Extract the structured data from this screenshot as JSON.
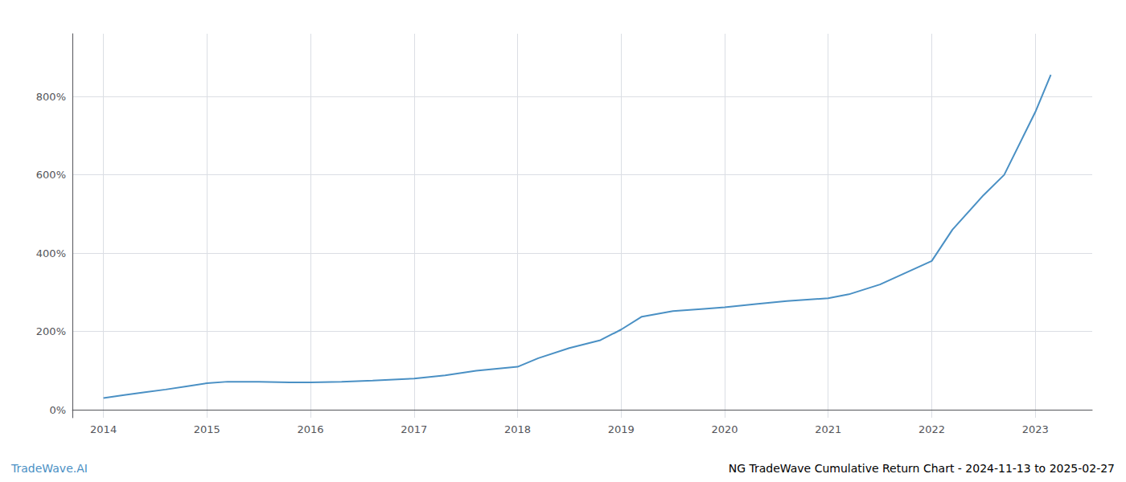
{
  "chart_data": {
    "type": "line",
    "annotations": [
      "TradeWave.AI",
      "NG TradeWave Cumulative Return Chart - 2024-11-13 to 2025-02-27"
    ],
    "x": [
      2014.0,
      2014.2,
      2014.4,
      2014.6,
      2014.8,
      2015.0,
      2015.2,
      2015.5,
      2015.8,
      2016.0,
      2016.3,
      2016.6,
      2017.0,
      2017.3,
      2017.6,
      2018.0,
      2018.2,
      2018.5,
      2018.8,
      2019.0,
      2019.2,
      2019.5,
      2019.8,
      2020.0,
      2020.3,
      2020.6,
      2021.0,
      2021.2,
      2021.5,
      2022.0,
      2022.2,
      2022.5,
      2022.7,
      2023.0,
      2023.15
    ],
    "values": [
      30,
      38,
      45,
      52,
      60,
      68,
      72,
      72,
      70,
      70,
      72,
      75,
      80,
      88,
      100,
      110,
      132,
      158,
      178,
      205,
      238,
      252,
      258,
      262,
      270,
      278,
      285,
      295,
      320,
      380,
      460,
      548,
      600,
      760,
      855
    ],
    "color": "#4a90c4",
    "xlim": [
      2013.7,
      2023.55
    ],
    "xticks": [
      2014,
      2015,
      2016,
      2017,
      2018,
      2019,
      2020,
      2021,
      2022,
      2023
    ],
    "ylim": [
      -20,
      960
    ],
    "yticks": [
      {
        "value": 0,
        "label": "0%"
      },
      {
        "value": 200,
        "label": "200%"
      },
      {
        "value": 400,
        "label": "400%"
      },
      {
        "value": 600,
        "label": "600%"
      },
      {
        "value": 800,
        "label": "800%"
      }
    ],
    "grid": true
  }
}
